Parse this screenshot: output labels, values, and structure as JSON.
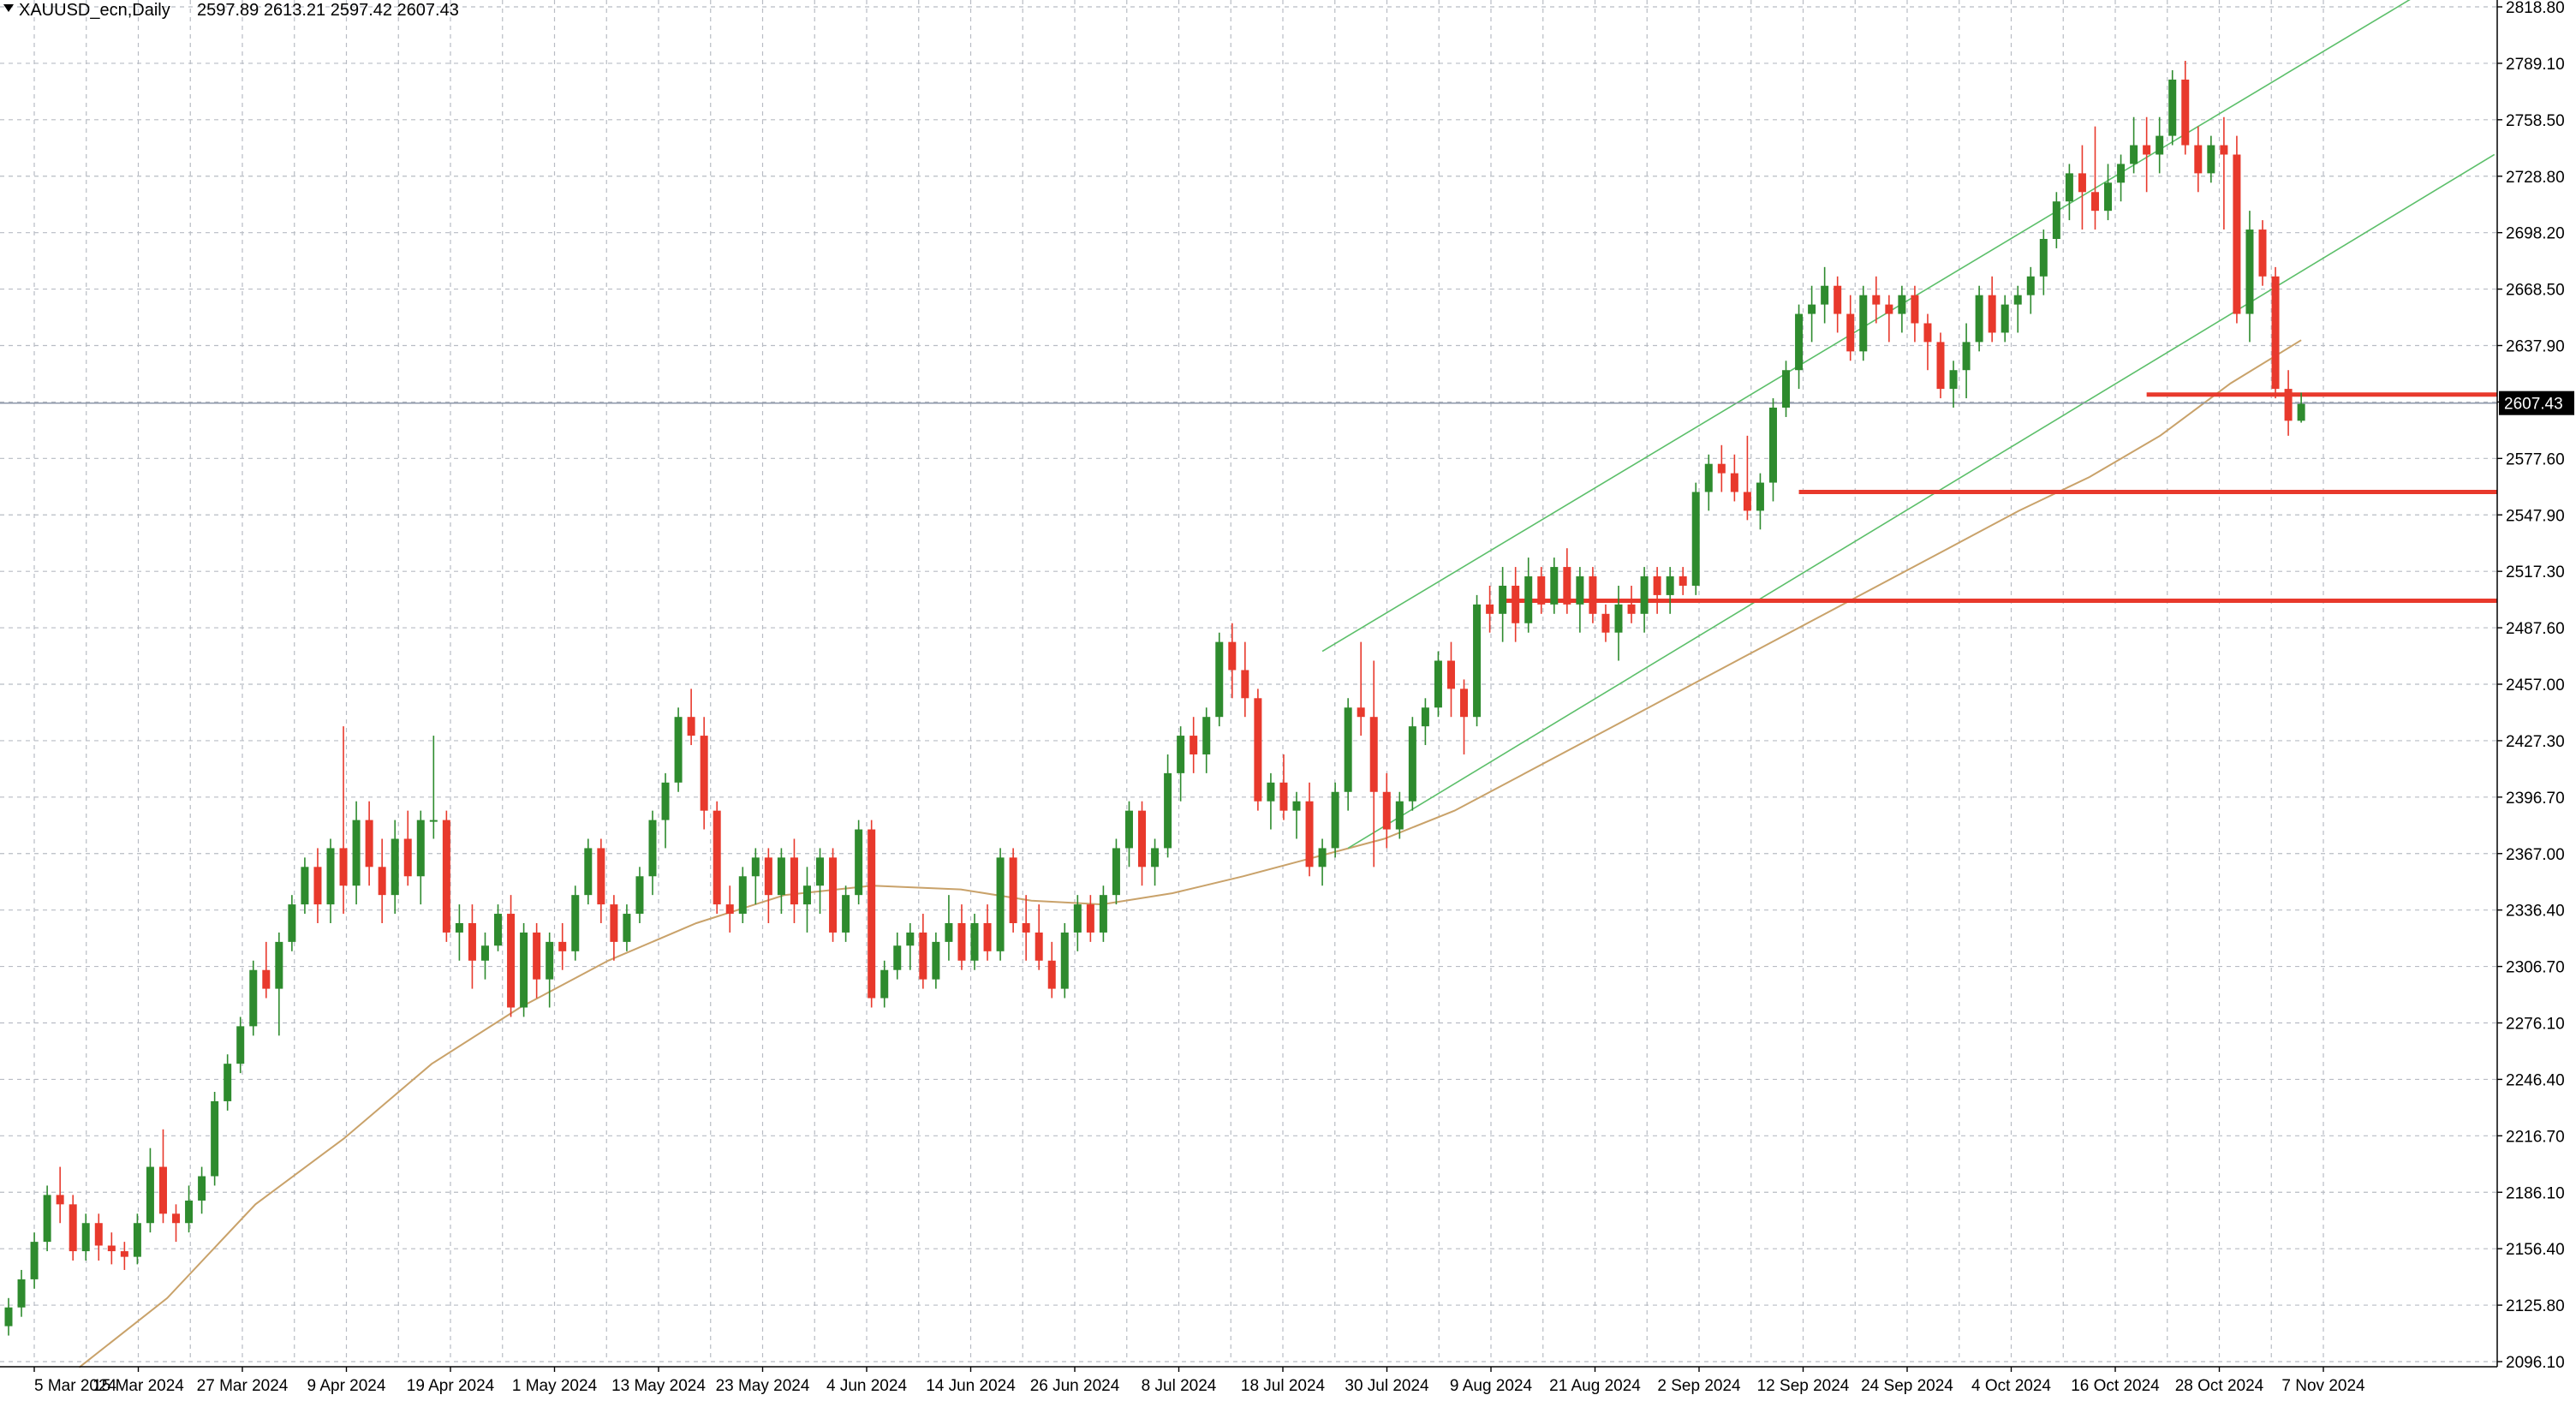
{
  "header": {
    "symbol_timeframe": "XAUUSD_ecn,Daily",
    "ohlc": "2597.89 2613.21 2597.42 2607.43",
    "menu_icon": "triangle-down-icon"
  },
  "colors": {
    "bull": "#2e8b2e",
    "bear": "#e8392c",
    "wick": "#2e8b2e",
    "grid": "#b8bcc4",
    "ma": "#c9a26a",
    "channel": "#5cbf6a",
    "level": "#e8392c",
    "bid_line": "#8c96a8",
    "price_tag_bg": "#000000"
  },
  "chart_data": {
    "type": "candlestick",
    "symbol": "XAUUSD_ecn",
    "timeframe": "Daily",
    "ylim": [
      2096.1,
      2818.8
    ],
    "y_ticks": [
      "2818.80",
      "2789.10",
      "2758.50",
      "2728.80",
      "2698.20",
      "2668.50",
      "2637.90",
      "2607.43",
      "2577.60",
      "2547.90",
      "2517.30",
      "2487.60",
      "2457.00",
      "2427.30",
      "2396.70",
      "2367.00",
      "2336.40",
      "2306.70",
      "2276.10",
      "2246.40",
      "2216.70",
      "2186.10",
      "2156.40",
      "2125.80",
      "2096.10"
    ],
    "x_ticks": [
      "5 Mar 2024",
      "15 Mar 2024",
      "27 Mar 2024",
      "9 Apr 2024",
      "19 Apr 2024",
      "1 May 2024",
      "13 May 2024",
      "23 May 2024",
      "4 Jun 2024",
      "14 Jun 2024",
      "26 Jun 2024",
      "8 Jul 2024",
      "18 Jul 2024",
      "30 Jul 2024",
      "9 Aug 2024",
      "21 Aug 2024",
      "2 Sep 2024",
      "12 Sep 2024",
      "24 Sep 2024",
      "4 Oct 2024",
      "16 Oct 2024",
      "28 Oct 2024",
      "7 Nov 2024"
    ],
    "current_price": 2607.43,
    "grid": true,
    "candles": [
      [
        2115,
        2130,
        2110,
        2125
      ],
      [
        2125,
        2145,
        2120,
        2140
      ],
      [
        2140,
        2165,
        2135,
        2160
      ],
      [
        2160,
        2190,
        2155,
        2185
      ],
      [
        2185,
        2200,
        2170,
        2180
      ],
      [
        2180,
        2185,
        2150,
        2155
      ],
      [
        2155,
        2175,
        2150,
        2170
      ],
      [
        2170,
        2175,
        2150,
        2158
      ],
      [
        2158,
        2165,
        2148,
        2155
      ],
      [
        2155,
        2160,
        2145,
        2152
      ],
      [
        2152,
        2175,
        2148,
        2170
      ],
      [
        2170,
        2210,
        2165,
        2200
      ],
      [
        2200,
        2220,
        2170,
        2175
      ],
      [
        2175,
        2180,
        2160,
        2170
      ],
      [
        2170,
        2190,
        2165,
        2182
      ],
      [
        2182,
        2200,
        2175,
        2195
      ],
      [
        2195,
        2240,
        2190,
        2235
      ],
      [
        2235,
        2260,
        2230,
        2255
      ],
      [
        2255,
        2280,
        2250,
        2275
      ],
      [
        2275,
        2310,
        2270,
        2305
      ],
      [
        2305,
        2320,
        2290,
        2295
      ],
      [
        2295,
        2325,
        2270,
        2320
      ],
      [
        2320,
        2345,
        2315,
        2340
      ],
      [
        2340,
        2365,
        2335,
        2360
      ],
      [
        2360,
        2370,
        2330,
        2340
      ],
      [
        2340,
        2375,
        2330,
        2370
      ],
      [
        2370,
        2435,
        2335,
        2350
      ],
      [
        2350,
        2395,
        2340,
        2385
      ],
      [
        2385,
        2395,
        2350,
        2360
      ],
      [
        2360,
        2375,
        2330,
        2345
      ],
      [
        2345,
        2385,
        2335,
        2375
      ],
      [
        2375,
        2390,
        2350,
        2355
      ],
      [
        2355,
        2390,
        2340,
        2385
      ],
      [
        2385,
        2430,
        2375,
        2385
      ],
      [
        2385,
        2390,
        2320,
        2325
      ],
      [
        2325,
        2340,
        2310,
        2330
      ],
      [
        2330,
        2340,
        2295,
        2310
      ],
      [
        2310,
        2325,
        2300,
        2318
      ],
      [
        2318,
        2340,
        2315,
        2335
      ],
      [
        2335,
        2345,
        2280,
        2285
      ],
      [
        2285,
        2330,
        2280,
        2325
      ],
      [
        2325,
        2330,
        2290,
        2300
      ],
      [
        2300,
        2325,
        2285,
        2320
      ],
      [
        2320,
        2330,
        2305,
        2315
      ],
      [
        2315,
        2350,
        2310,
        2345
      ],
      [
        2345,
        2375,
        2340,
        2370
      ],
      [
        2370,
        2375,
        2330,
        2340
      ],
      [
        2340,
        2345,
        2310,
        2320
      ],
      [
        2320,
        2340,
        2315,
        2335
      ],
      [
        2335,
        2360,
        2330,
        2355
      ],
      [
        2355,
        2390,
        2345,
        2385
      ],
      [
        2385,
        2410,
        2370,
        2405
      ],
      [
        2405,
        2445,
        2400,
        2440
      ],
      [
        2440,
        2455,
        2425,
        2430
      ],
      [
        2430,
        2440,
        2380,
        2390
      ],
      [
        2390,
        2395,
        2335,
        2340
      ],
      [
        2340,
        2350,
        2325,
        2335
      ],
      [
        2335,
        2360,
        2330,
        2355
      ],
      [
        2355,
        2370,
        2340,
        2365
      ],
      [
        2365,
        2370,
        2330,
        2345
      ],
      [
        2345,
        2370,
        2335,
        2365
      ],
      [
        2365,
        2375,
        2330,
        2340
      ],
      [
        2340,
        2360,
        2325,
        2350
      ],
      [
        2350,
        2370,
        2335,
        2365
      ],
      [
        2365,
        2370,
        2320,
        2325
      ],
      [
        2325,
        2350,
        2320,
        2345
      ],
      [
        2345,
        2385,
        2340,
        2380
      ],
      [
        2380,
        2385,
        2285,
        2290
      ],
      [
        2290,
        2310,
        2285,
        2305
      ],
      [
        2305,
        2325,
        2300,
        2318
      ],
      [
        2318,
        2330,
        2305,
        2325
      ],
      [
        2325,
        2335,
        2295,
        2300
      ],
      [
        2300,
        2325,
        2295,
        2320
      ],
      [
        2320,
        2345,
        2310,
        2330
      ],
      [
        2330,
        2340,
        2305,
        2310
      ],
      [
        2310,
        2335,
        2305,
        2330
      ],
      [
        2330,
        2340,
        2310,
        2315
      ],
      [
        2315,
        2370,
        2310,
        2365
      ],
      [
        2365,
        2370,
        2325,
        2330
      ],
      [
        2330,
        2345,
        2310,
        2325
      ],
      [
        2325,
        2340,
        2305,
        2310
      ],
      [
        2310,
        2320,
        2290,
        2295
      ],
      [
        2295,
        2330,
        2290,
        2325
      ],
      [
        2325,
        2345,
        2315,
        2340
      ],
      [
        2340,
        2345,
        2320,
        2325
      ],
      [
        2325,
        2350,
        2320,
        2345
      ],
      [
        2345,
        2375,
        2340,
        2370
      ],
      [
        2370,
        2395,
        2360,
        2390
      ],
      [
        2390,
        2395,
        2350,
        2360
      ],
      [
        2360,
        2375,
        2350,
        2370
      ],
      [
        2370,
        2420,
        2365,
        2410
      ],
      [
        2410,
        2435,
        2395,
        2430
      ],
      [
        2430,
        2440,
        2410,
        2420
      ],
      [
        2420,
        2445,
        2410,
        2440
      ],
      [
        2440,
        2485,
        2435,
        2480
      ],
      [
        2480,
        2490,
        2450,
        2465
      ],
      [
        2465,
        2480,
        2440,
        2450
      ],
      [
        2450,
        2455,
        2390,
        2395
      ],
      [
        2395,
        2410,
        2380,
        2405
      ],
      [
        2405,
        2420,
        2385,
        2390
      ],
      [
        2390,
        2400,
        2375,
        2395
      ],
      [
        2395,
        2405,
        2355,
        2360
      ],
      [
        2360,
        2375,
        2350,
        2370
      ],
      [
        2370,
        2405,
        2365,
        2400
      ],
      [
        2400,
        2450,
        2390,
        2445
      ],
      [
        2445,
        2480,
        2430,
        2440
      ],
      [
        2440,
        2470,
        2360,
        2400
      ],
      [
        2400,
        2410,
        2370,
        2380
      ],
      [
        2380,
        2400,
        2375,
        2395
      ],
      [
        2395,
        2440,
        2390,
        2435
      ],
      [
        2435,
        2450,
        2425,
        2445
      ],
      [
        2445,
        2475,
        2440,
        2470
      ],
      [
        2470,
        2480,
        2440,
        2455
      ],
      [
        2455,
        2460,
        2420,
        2440
      ],
      [
        2440,
        2505,
        2435,
        2500
      ],
      [
        2500,
        2510,
        2485,
        2495
      ],
      [
        2495,
        2520,
        2480,
        2510
      ],
      [
        2510,
        2520,
        2480,
        2490
      ],
      [
        2490,
        2525,
        2485,
        2515
      ],
      [
        2515,
        2520,
        2495,
        2500
      ],
      [
        2500,
        2525,
        2495,
        2520
      ],
      [
        2520,
        2530,
        2495,
        2500
      ],
      [
        2500,
        2520,
        2485,
        2515
      ],
      [
        2515,
        2520,
        2490,
        2495
      ],
      [
        2495,
        2500,
        2480,
        2485
      ],
      [
        2485,
        2510,
        2470,
        2500
      ],
      [
        2500,
        2510,
        2490,
        2495
      ],
      [
        2495,
        2520,
        2485,
        2515
      ],
      [
        2515,
        2520,
        2495,
        2505
      ],
      [
        2505,
        2520,
        2495,
        2515
      ],
      [
        2515,
        2520,
        2505,
        2510
      ],
      [
        2510,
        2565,
        2505,
        2560
      ],
      [
        2560,
        2580,
        2550,
        2575
      ],
      [
        2575,
        2585,
        2560,
        2570
      ],
      [
        2570,
        2580,
        2555,
        2560
      ],
      [
        2560,
        2590,
        2545,
        2550
      ],
      [
        2550,
        2570,
        2540,
        2565
      ],
      [
        2565,
        2610,
        2555,
        2605
      ],
      [
        2605,
        2630,
        2600,
        2625
      ],
      [
        2625,
        2660,
        2615,
        2655
      ],
      [
        2655,
        2670,
        2640,
        2660
      ],
      [
        2660,
        2680,
        2650,
        2670
      ],
      [
        2670,
        2675,
        2645,
        2655
      ],
      [
        2655,
        2665,
        2630,
        2635
      ],
      [
        2635,
        2670,
        2630,
        2665
      ],
      [
        2665,
        2675,
        2650,
        2660
      ],
      [
        2660,
        2665,
        2640,
        2655
      ],
      [
        2655,
        2670,
        2645,
        2665
      ],
      [
        2665,
        2670,
        2640,
        2650
      ],
      [
        2650,
        2655,
        2625,
        2640
      ],
      [
        2640,
        2645,
        2610,
        2615
      ],
      [
        2615,
        2630,
        2605,
        2625
      ],
      [
        2625,
        2650,
        2610,
        2640
      ],
      [
        2640,
        2670,
        2635,
        2665
      ],
      [
        2665,
        2675,
        2640,
        2645
      ],
      [
        2645,
        2665,
        2640,
        2660
      ],
      [
        2660,
        2670,
        2645,
        2665
      ],
      [
        2665,
        2680,
        2655,
        2675
      ],
      [
        2675,
        2700,
        2665,
        2695
      ],
      [
        2695,
        2720,
        2690,
        2715
      ],
      [
        2715,
        2735,
        2705,
        2730
      ],
      [
        2730,
        2745,
        2700,
        2720
      ],
      [
        2720,
        2755,
        2700,
        2710
      ],
      [
        2710,
        2735,
        2705,
        2725
      ],
      [
        2725,
        2740,
        2715,
        2735
      ],
      [
        2735,
        2760,
        2730,
        2745
      ],
      [
        2745,
        2760,
        2720,
        2740
      ],
      [
        2740,
        2760,
        2730,
        2750
      ],
      [
        2750,
        2785,
        2745,
        2780
      ],
      [
        2780,
        2790,
        2740,
        2745
      ],
      [
        2745,
        2755,
        2720,
        2730
      ],
      [
        2730,
        2750,
        2725,
        2745
      ],
      [
        2745,
        2760,
        2700,
        2740
      ],
      [
        2740,
        2750,
        2650,
        2655
      ],
      [
        2655,
        2710,
        2640,
        2700
      ],
      [
        2700,
        2705,
        2670,
        2675
      ],
      [
        2675,
        2680,
        2610,
        2615
      ],
      [
        2615,
        2625,
        2590,
        2598
      ],
      [
        2598,
        2613,
        2597,
        2607
      ]
    ],
    "moving_average": {
      "type": "line",
      "points": [
        [
          20,
          2093
        ],
        [
          45,
          2130
        ],
        [
          70,
          2180
        ],
        [
          95,
          2215
        ],
        [
          120,
          2255
        ],
        [
          145,
          2285
        ],
        [
          170,
          2310
        ],
        [
          195,
          2330
        ],
        [
          220,
          2345
        ],
        [
          245,
          2350
        ],
        [
          270,
          2348
        ],
        [
          290,
          2342
        ],
        [
          310,
          2340
        ],
        [
          330,
          2346
        ],
        [
          350,
          2355
        ],
        [
          370,
          2365
        ],
        [
          390,
          2375
        ],
        [
          410,
          2390
        ],
        [
          430,
          2410
        ],
        [
          450,
          2430
        ],
        [
          470,
          2450
        ],
        [
          490,
          2470
        ],
        [
          510,
          2490
        ],
        [
          530,
          2510
        ],
        [
          550,
          2530
        ],
        [
          570,
          2550
        ],
        [
          590,
          2568
        ],
        [
          610,
          2590
        ],
        [
          630,
          2618
        ],
        [
          650,
          2641
        ]
      ]
    },
    "channel_lines": [
      {
        "from": [
          102,
          2475
        ],
        "to": [
          187,
          2825
        ]
      },
      {
        "from": [
          104,
          2370
        ],
        "to": [
          193,
          2740
        ]
      }
    ],
    "horizontal_levels": [
      {
        "price": 2612,
        "from_bar": 166
      },
      {
        "price": 2560,
        "from_bar": 139
      },
      {
        "price": 2502,
        "from_bar": 116
      }
    ]
  }
}
